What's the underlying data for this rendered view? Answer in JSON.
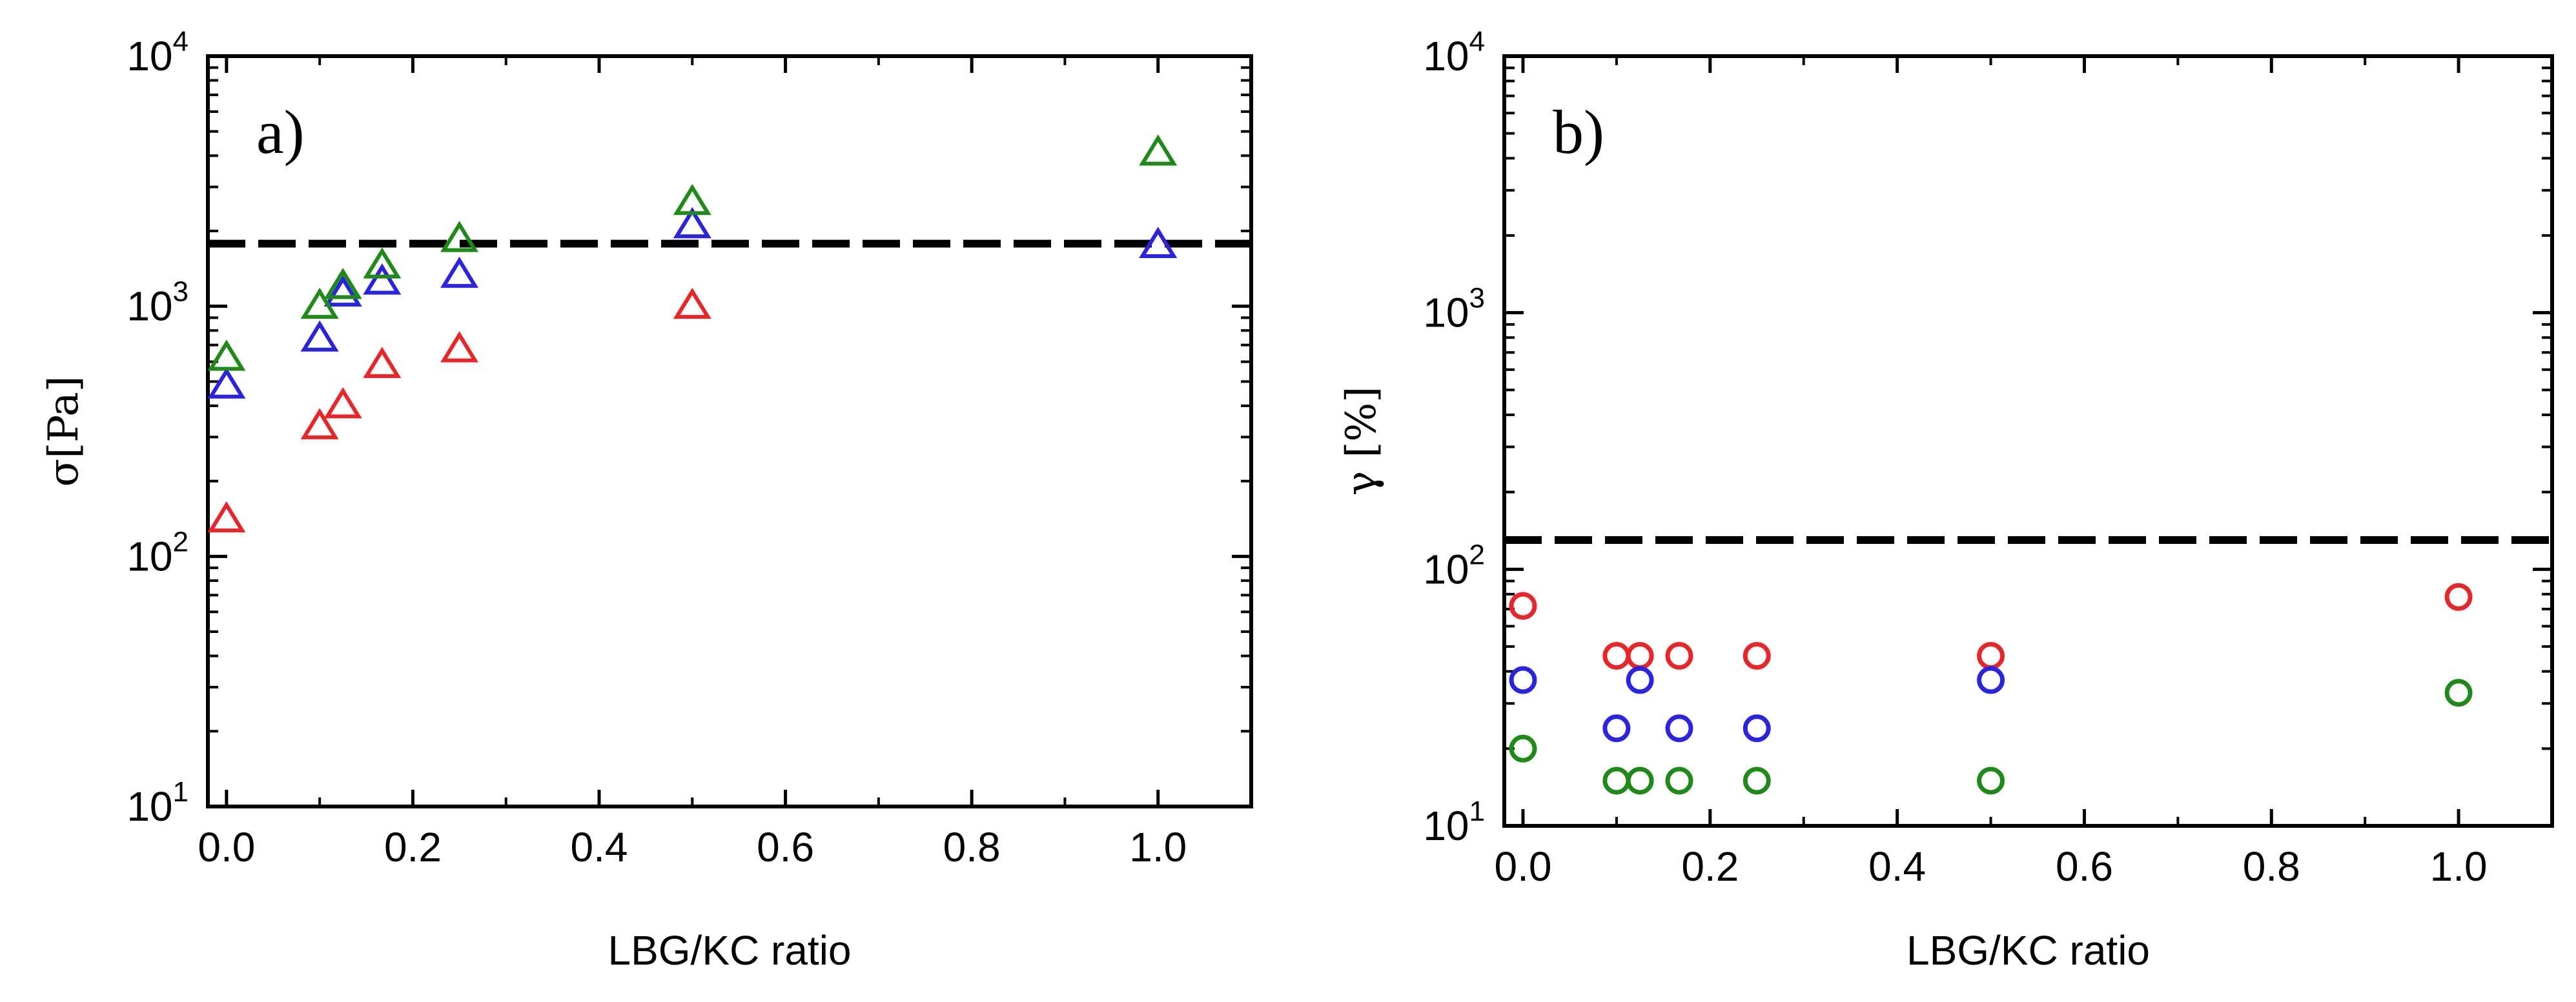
{
  "chart_data": [
    {
      "type": "scatter",
      "panel_label": "a)",
      "xlabel": "LBG/KC ratio",
      "ylabel": "σ[Pa]",
      "xlim": [
        -0.02,
        1.1
      ],
      "ylim": [
        10,
        10000
      ],
      "yscale": "log",
      "xticks": [
        0.0,
        0.2,
        0.4,
        0.6,
        0.8,
        1.0
      ],
      "xtick_labels": [
        "0.0",
        "0.2",
        "0.4",
        "0.6",
        "0.8",
        "1.0"
      ],
      "yticks": [
        10,
        100,
        1000,
        10000
      ],
      "ytick_labels": [
        {
          "base": "10",
          "exp": "1"
        },
        {
          "base": "10",
          "exp": "2"
        },
        {
          "base": "10",
          "exp": "3"
        },
        {
          "base": "10",
          "exp": "4"
        }
      ],
      "marker": "triangle",
      "reference_line": {
        "y": 1780,
        "style": "dashed",
        "color": "#000000"
      },
      "series": [
        {
          "name": "red",
          "color": "#e8262a",
          "x": [
            0.0,
            0.1,
            0.125,
            0.167,
            0.25,
            0.5,
            1.0
          ],
          "y": [
            140,
            330,
            400,
            580,
            670,
            1000,
            1750
          ]
        },
        {
          "name": "blue",
          "color": "#2a24e0",
          "x": [
            0.0,
            0.1,
            0.125,
            0.167,
            0.25,
            0.5,
            1.0
          ],
          "y": [
            480,
            740,
            1120,
            1250,
            1330,
            2100,
            1750
          ]
        },
        {
          "name": "green",
          "color": "#1f8a1a",
          "x": [
            0.0,
            0.1,
            0.125,
            0.167,
            0.25,
            0.5,
            1.0
          ],
          "y": [
            620,
            1000,
            1200,
            1450,
            1850,
            2600,
            4100
          ]
        }
      ]
    },
    {
      "type": "scatter",
      "panel_label": "b)",
      "xlabel": "LBG/KC ratio",
      "ylabel": "γ [%]",
      "xlim": [
        -0.02,
        1.1
      ],
      "ylim": [
        10,
        10000
      ],
      "yscale": "log",
      "xticks": [
        0.0,
        0.2,
        0.4,
        0.6,
        0.8,
        1.0
      ],
      "xtick_labels": [
        "0.0",
        "0.2",
        "0.4",
        "0.6",
        "0.8",
        "1.0"
      ],
      "yticks": [
        10,
        100,
        1000,
        10000
      ],
      "ytick_labels": [
        {
          "base": "10",
          "exp": "1"
        },
        {
          "base": "10",
          "exp": "2"
        },
        {
          "base": "10",
          "exp": "3"
        },
        {
          "base": "10",
          "exp": "4"
        }
      ],
      "marker": "circle",
      "reference_line": {
        "y": 130,
        "style": "dashed",
        "color": "#000000"
      },
      "series": [
        {
          "name": "red",
          "color": "#e8262a",
          "x": [
            0.0,
            0.1,
            0.125,
            0.167,
            0.25,
            0.5,
            1.0
          ],
          "y": [
            72,
            46,
            46,
            46,
            46,
            46,
            78
          ]
        },
        {
          "name": "blue",
          "color": "#2a24e0",
          "x": [
            0.0,
            0.1,
            0.125,
            0.167,
            0.25,
            0.5
          ],
          "y": [
            37,
            24,
            37,
            24,
            24,
            37
          ]
        },
        {
          "name": "green",
          "color": "#1f8a1a",
          "x": [
            0.0,
            0.1,
            0.125,
            0.167,
            0.25,
            0.5,
            1.0
          ],
          "y": [
            20,
            15,
            15,
            15,
            15,
            15,
            33
          ]
        }
      ]
    }
  ]
}
